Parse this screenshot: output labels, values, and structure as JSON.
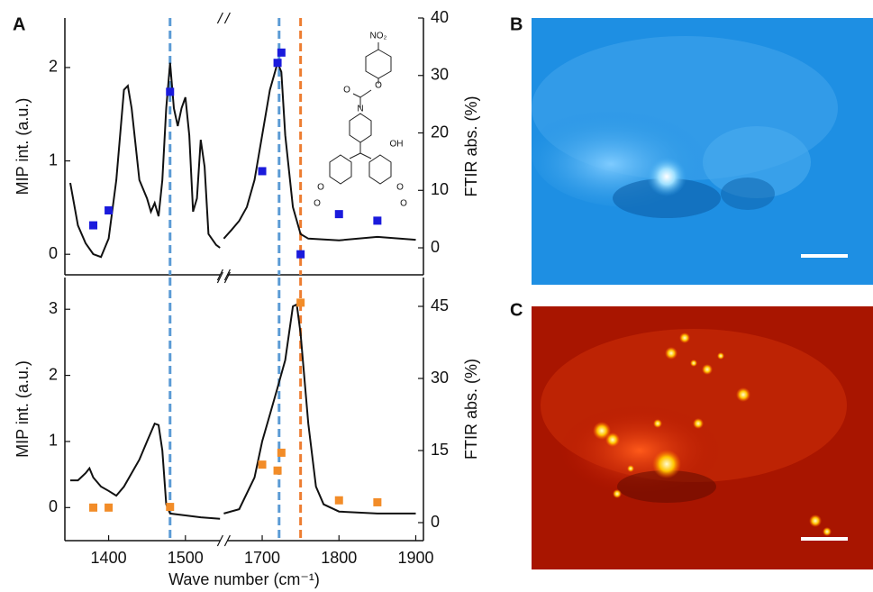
{
  "panels": {
    "a": "A",
    "b": "B",
    "c": "C"
  },
  "inset": {
    "labels": [
      "NO₂",
      "O",
      "O",
      "N",
      "OH",
      "O",
      "O",
      "O",
      "O"
    ]
  },
  "chart_data": [
    {
      "type": "line",
      "ylabel": "MIP int. (a.u.)",
      "y2label": "FTIR abs. (%)",
      "xlim": [
        1343,
        1910
      ],
      "xbreak": [
        1550,
        1650
      ],
      "ylim": [
        -0.22,
        2.53
      ],
      "yticks": [
        0,
        1,
        2
      ],
      "y2lim": [
        -4.7,
        40
      ],
      "y2ticks": [
        0,
        10,
        20,
        30,
        40
      ],
      "vlines": [
        {
          "x": 1480,
          "color": "#5b9bd5"
        },
        {
          "x": 1722,
          "color": "#5b9bd5"
        },
        {
          "x": 1750,
          "color": "#ed7d31"
        }
      ],
      "series": [
        {
          "color": "#111111",
          "axis": "y2",
          "x": [
            1350,
            1360,
            1370,
            1380,
            1390,
            1400,
            1410,
            1420,
            1425,
            1430,
            1440,
            1450,
            1455,
            1460,
            1465,
            1470,
            1475,
            1480,
            1485,
            1490,
            1495,
            1500,
            1505,
            1510,
            1515,
            1520,
            1525,
            1530,
            1540,
            1545,
            null,
            1650,
            1660,
            1670,
            1680,
            1690,
            1700,
            1710,
            1720,
            1725,
            1730,
            1740,
            1750,
            1760,
            1800,
            1850,
            1900
          ],
          "values": [
            11.3,
            3.9,
            0.8,
            -1.1,
            -1.6,
            1.6,
            11.8,
            27.5,
            28.2,
            24.3,
            11.8,
            8.6,
            6.3,
            7.8,
            5.5,
            11.8,
            24.3,
            32.2,
            24.3,
            21.2,
            24.3,
            26.2,
            19.6,
            6.3,
            8.6,
            18.8,
            14.1,
            2.4,
            0.5,
            0,
            null,
            1.6,
            3.1,
            4.7,
            7.1,
            11.8,
            19.6,
            27.5,
            32.2,
            30.6,
            19.6,
            7.1,
            2.4,
            1.6,
            1.3,
            1.9,
            1.4
          ]
        },
        {
          "color": "#1a1adc",
          "marker": "square",
          "x": [
            1380,
            1400,
            1480,
            1700,
            1720,
            1725,
            1750,
            1800,
            1850
          ],
          "values": [
            0.31,
            0.47,
            1.74,
            0.89,
            2.05,
            2.16,
            0.0,
            0.43,
            0.36
          ]
        }
      ]
    },
    {
      "type": "line",
      "ylabel": "MIP int. (a.u.)",
      "y2label": "FTIR abs. (%)",
      "xlabel": "Wave number (cm⁻¹)",
      "xlim": [
        1343,
        1910
      ],
      "xbreak": [
        1550,
        1650
      ],
      "xticks": [
        1400,
        1500,
        1700,
        1800,
        1900
      ],
      "ylim": [
        -0.5,
        3.48
      ],
      "yticks": [
        0,
        1,
        2,
        3
      ],
      "y2lim": [
        -3.75,
        51
      ],
      "y2ticks": [
        0,
        15,
        30,
        45
      ],
      "vlines": [
        {
          "x": 1480,
          "color": "#5b9bd5"
        },
        {
          "x": 1722,
          "color": "#5b9bd5"
        },
        {
          "x": 1750,
          "color": "#ed7d31"
        }
      ],
      "series": [
        {
          "color": "#111111",
          "axis": "y2",
          "x": [
            1350,
            1360,
            1370,
            1375,
            1380,
            1390,
            1400,
            1410,
            1420,
            1430,
            1440,
            1450,
            1460,
            1465,
            1470,
            1475,
            1480,
            1500,
            1520,
            1545,
            null,
            1650,
            1670,
            1690,
            1700,
            1710,
            1720,
            1730,
            1740,
            1745,
            1750,
            1760,
            1770,
            1780,
            1800,
            1850,
            1900
          ],
          "values": [
            8.8,
            8.8,
            10.3,
            11.3,
            9.4,
            7.5,
            6.6,
            5.6,
            7.5,
            10.3,
            13.1,
            16.9,
            20.6,
            20.3,
            15.0,
            3.8,
            1.9,
            1.5,
            1.1,
            0.8,
            null,
            1.9,
            2.8,
            9.4,
            16.9,
            22.5,
            28.1,
            33.8,
            45.0,
            45.4,
            39.4,
            20.6,
            7.5,
            3.8,
            2.3,
            1.9,
            1.9
          ]
        },
        {
          "color": "#f28c28",
          "marker": "square",
          "x": [
            1380,
            1400,
            1480,
            1700,
            1720,
            1725,
            1750,
            1800,
            1850
          ],
          "values": [
            0,
            0,
            0.01,
            0.65,
            0.56,
            0.83,
            3.1,
            0.11,
            0.08
          ]
        }
      ]
    }
  ]
}
